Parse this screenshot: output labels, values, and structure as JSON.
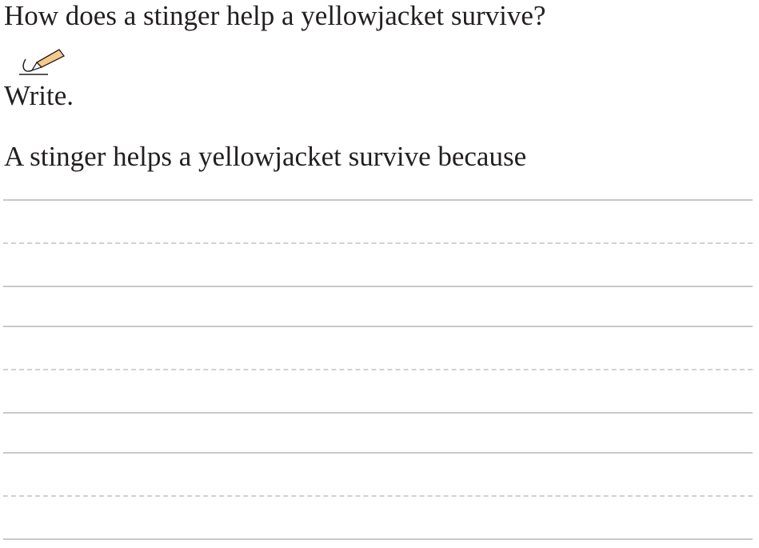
{
  "question": "How does a stinger help a yellowjacket survive?",
  "instruction": {
    "icon": "pencil-icon",
    "label": "Write."
  },
  "sentence_starter": "A stinger helps a yellowjacket survive because",
  "writing_lines": {
    "groups": 3,
    "line_color": "#c8c8c8"
  }
}
